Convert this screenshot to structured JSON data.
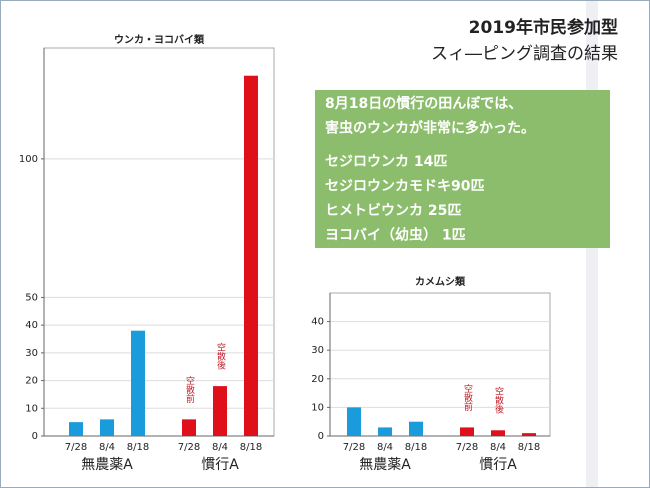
{
  "header": {
    "title_lines": [
      "2019年市民参加型",
      "スィ―ピング調査の結果"
    ]
  },
  "note": {
    "paragraphs": [
      [
        "8月18日の慣行の田んぼでは、",
        "害虫のウンカが非常に多かった。"
      ],
      [
        "セジロウンカ 14匹",
        "セジロウンカモドキ90匹",
        "ヒメトビウンカ 25匹",
        "ヨコバイ（幼虫） 1匹"
      ]
    ]
  },
  "chart_data": [
    {
      "type": "bar",
      "title": "ウンカ・ヨコバイ類",
      "ylim": [
        0,
        140
      ],
      "yticks": [
        0,
        10,
        20,
        30,
        40,
        50,
        100
      ],
      "grid": true,
      "series": [
        {
          "name": "無農薬A",
          "color": "#1a9bdc",
          "categories": [
            "7/28",
            "8/4",
            "8/18"
          ],
          "values": [
            5,
            6,
            38
          ],
          "notes": [
            null,
            null,
            null
          ]
        },
        {
          "name": "慣行A",
          "color": "#e0101a",
          "categories": [
            "7/28",
            "8/4",
            "8/18"
          ],
          "values": [
            6,
            18,
            130
          ],
          "notes": [
            "空散前",
            "空散後",
            null
          ]
        }
      ]
    },
    {
      "type": "bar",
      "title": "カメムシ類",
      "ylim": [
        0,
        50
      ],
      "yticks": [
        0,
        10,
        20,
        30,
        40
      ],
      "grid": true,
      "series": [
        {
          "name": "無農薬A",
          "color": "#1a9bdc",
          "categories": [
            "7/28",
            "8/4",
            "8/18"
          ],
          "values": [
            10,
            3,
            5
          ],
          "notes": [
            null,
            null,
            null
          ]
        },
        {
          "name": "慣行A",
          "color": "#e0101a",
          "categories": [
            "7/28",
            "8/4",
            "8/18"
          ],
          "values": [
            3,
            2,
            1
          ],
          "notes": [
            "空散前",
            "空散後",
            null
          ]
        }
      ]
    }
  ]
}
